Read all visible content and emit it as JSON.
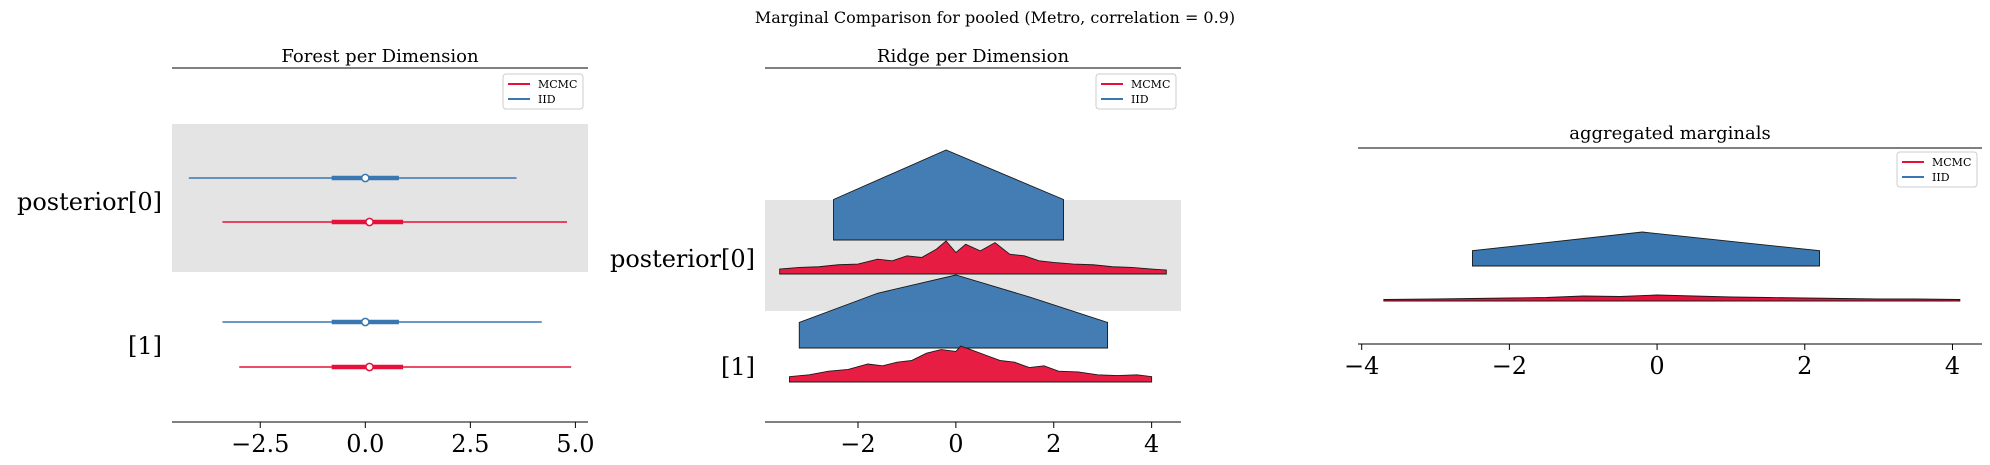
{
  "suptitle": "Marginal Comparison for pooled (Metro, correlation = 0.9)",
  "colors": {
    "mcmc": "#e6113a",
    "iid": "#3a76b0",
    "band": "#e4e4e4"
  },
  "chart_data": [
    {
      "type": "forest",
      "title": "Forest per Dimension",
      "xlim": [
        -4.6,
        5.3
      ],
      "xticks": [
        -2.5,
        0.0,
        2.5,
        5.0
      ],
      "xtick_labels": [
        "−2.5",
        "0.0",
        "2.5",
        "5.0"
      ],
      "legend": {
        "placement": "upper right",
        "entries": [
          "MCMC",
          "IID"
        ]
      },
      "rows": [
        {
          "label": "posterior[0]",
          "shaded": true,
          "series": [
            {
              "name": "IID",
              "hdi_low": -4.2,
              "hdi_high": 3.6,
              "iqr_low": -0.8,
              "iqr_high": 0.8,
              "point": 0.0
            },
            {
              "name": "MCMC",
              "hdi_low": -3.4,
              "hdi_high": 4.8,
              "iqr_low": -0.8,
              "iqr_high": 0.9,
              "point": 0.1
            }
          ]
        },
        {
          "label": "[1]",
          "shaded": false,
          "series": [
            {
              "name": "IID",
              "hdi_low": -3.4,
              "hdi_high": 4.2,
              "iqr_low": -0.8,
              "iqr_high": 0.8,
              "point": 0.0
            },
            {
              "name": "MCMC",
              "hdi_low": -3.0,
              "hdi_high": 4.9,
              "iqr_low": -0.8,
              "iqr_high": 0.9,
              "point": 0.1
            }
          ]
        }
      ]
    },
    {
      "type": "ridgeline",
      "title": "Ridge per Dimension",
      "xlim": [
        -3.9,
        4.6
      ],
      "xticks": [
        -2,
        0,
        2,
        4
      ],
      "xtick_labels": [
        "−2",
        "0",
        "2",
        "4"
      ],
      "legend": {
        "placement": "upper right",
        "entries": [
          "MCMC",
          "IID"
        ]
      },
      "rows": [
        {
          "label": "posterior[0]",
          "shaded": true,
          "iid": {
            "x": [
              -2.5,
              -0.2,
              2.2
            ],
            "y": [
              0.45,
              1.0,
              0.45
            ]
          },
          "mcmc": {
            "x": [
              -3.6,
              -3.2,
              -2.8,
              -2.4,
              -2.0,
              -1.6,
              -1.3,
              -1.0,
              -0.7,
              -0.4,
              -0.2,
              0.0,
              0.2,
              0.5,
              0.8,
              1.1,
              1.4,
              1.7,
              2.0,
              2.4,
              2.8,
              3.2,
              3.6,
              4.0,
              4.3
            ],
            "y": [
              0.15,
              0.2,
              0.22,
              0.28,
              0.3,
              0.45,
              0.4,
              0.55,
              0.5,
              0.75,
              1.0,
              0.65,
              0.9,
              0.7,
              0.95,
              0.6,
              0.55,
              0.4,
              0.35,
              0.3,
              0.28,
              0.22,
              0.2,
              0.15,
              0.12
            ]
          }
        },
        {
          "label": "[1]",
          "shaded": false,
          "iid": {
            "x": [
              -3.2,
              -1.6,
              0.0,
              1.5,
              3.1
            ],
            "y": [
              0.35,
              0.75,
              1.0,
              0.7,
              0.35
            ]
          },
          "mcmc": {
            "x": [
              -3.4,
              -3.0,
              -2.6,
              -2.2,
              -1.8,
              -1.5,
              -1.2,
              -0.9,
              -0.6,
              -0.3,
              0.0,
              0.1,
              0.3,
              0.6,
              0.9,
              1.2,
              1.5,
              1.8,
              2.1,
              2.5,
              2.9,
              3.3,
              3.7,
              4.0
            ],
            "y": [
              0.15,
              0.2,
              0.3,
              0.35,
              0.5,
              0.45,
              0.55,
              0.6,
              0.8,
              0.9,
              0.85,
              1.0,
              0.9,
              0.75,
              0.6,
              0.55,
              0.4,
              0.45,
              0.3,
              0.28,
              0.2,
              0.18,
              0.2,
              0.15
            ]
          }
        }
      ]
    },
    {
      "type": "area",
      "title": "aggregated marginals",
      "xlim": [
        -4.05,
        4.4
      ],
      "xticks": [
        -4,
        -2,
        0,
        2,
        4
      ],
      "xtick_labels": [
        "−4",
        "−2",
        "0",
        "2",
        "4"
      ],
      "legend": {
        "placement": "upper right",
        "entries": [
          "MCMC",
          "IID"
        ]
      },
      "series": [
        {
          "name": "IID",
          "x": [
            -2.5,
            -0.2,
            2.2
          ],
          "y": [
            0.45,
            1.0,
            0.45
          ]
        },
        {
          "name": "MCMC",
          "x": [
            -3.7,
            -3.0,
            -2.5,
            -2.0,
            -1.5,
            -1.0,
            -0.5,
            0.0,
            0.5,
            1.0,
            1.5,
            2.0,
            2.5,
            3.0,
            3.5,
            4.1
          ],
          "y": [
            0.15,
            0.2,
            0.25,
            0.3,
            0.35,
            0.5,
            0.45,
            0.6,
            0.5,
            0.4,
            0.35,
            0.3,
            0.25,
            0.2,
            0.2,
            0.15
          ]
        }
      ]
    }
  ]
}
